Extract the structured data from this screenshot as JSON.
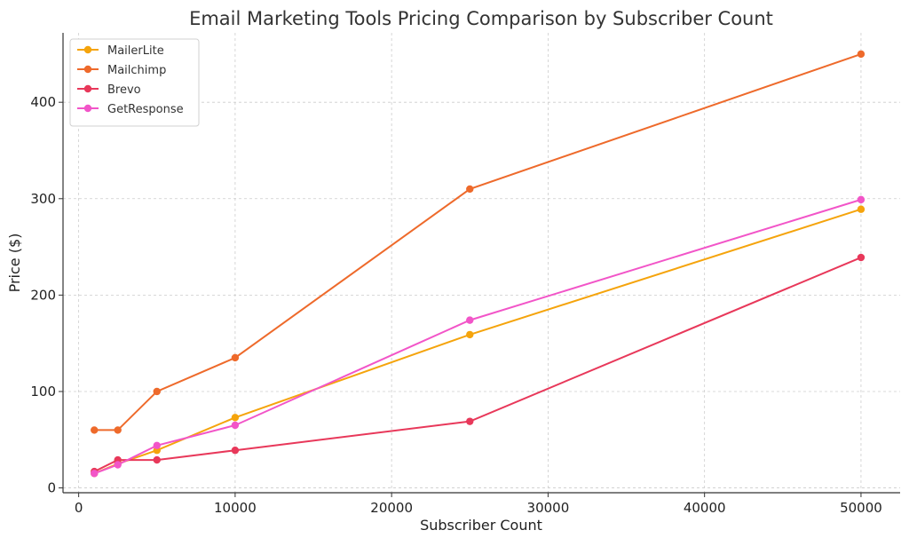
{
  "chart_data": {
    "type": "line",
    "title": "Email Marketing Tools Pricing Comparison by Subscriber Count",
    "xlabel": "Subscriber Count",
    "ylabel": "Price ($)",
    "x": [
      1000,
      2500,
      5000,
      10000,
      25000,
      50000
    ],
    "xlim": [
      -1000,
      52500
    ],
    "ylim": [
      -5,
      472
    ],
    "xticks": [
      0,
      10000,
      20000,
      30000,
      40000,
      50000
    ],
    "yticks": [
      0,
      100,
      200,
      300,
      400
    ],
    "xtick_labels": [
      "0",
      "10000",
      "20000",
      "30000",
      "40000",
      "50000"
    ],
    "ytick_labels": [
      "0",
      "100",
      "200",
      "300",
      "400"
    ],
    "grid": true,
    "legend_position": "top-left",
    "series": [
      {
        "name": "MailerLite",
        "color": "#f5a40c",
        "values": [
          15,
          25,
          39,
          73,
          159,
          289
        ]
      },
      {
        "name": "Mailchimp",
        "color": "#ee6a2b",
        "values": [
          60,
          60,
          100,
          135,
          310,
          450
        ]
      },
      {
        "name": "Brevo",
        "color": "#e8385a",
        "values": [
          17,
          29,
          29,
          39,
          69,
          239
        ]
      },
      {
        "name": "GetResponse",
        "color": "#f255c8",
        "values": [
          15,
          24,
          44,
          65,
          174,
          299
        ]
      }
    ]
  }
}
